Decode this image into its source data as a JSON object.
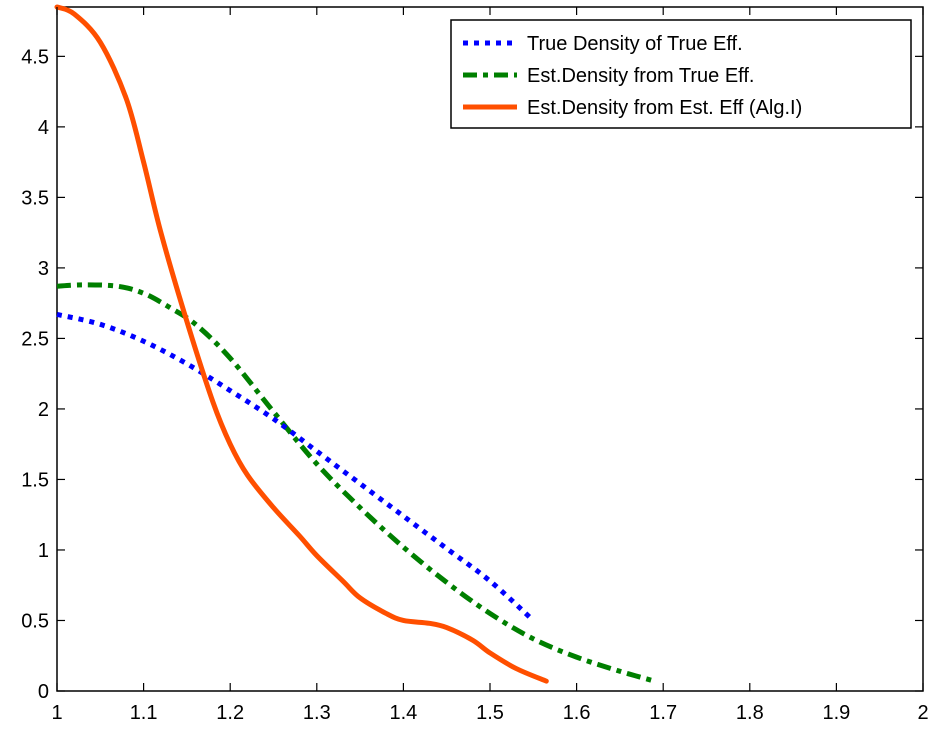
{
  "chart_data": {
    "type": "line",
    "title": "",
    "xlabel": "",
    "ylabel": "",
    "xlim": [
      1,
      2
    ],
    "ylim": [
      0,
      4.85
    ],
    "x_ticks": [
      1,
      1.1,
      1.2,
      1.3,
      1.4,
      1.5,
      1.6,
      1.7,
      1.8,
      1.9,
      2
    ],
    "x_tick_labels": [
      "1",
      "1.1",
      "1.2",
      "1.3",
      "1.4",
      "1.5",
      "1.6",
      "1.7",
      "1.8",
      "1.9",
      "2"
    ],
    "y_ticks": [
      0,
      0.5,
      1,
      1.5,
      2,
      2.5,
      3,
      3.5,
      4,
      4.5
    ],
    "y_tick_labels": [
      "0",
      "0.5",
      "1",
      "1.5",
      "2",
      "2.5",
      "3",
      "3.5",
      "4",
      "4.5"
    ],
    "grid": false,
    "legend_position": "top-right",
    "series": [
      {
        "name": "True Density of True Eff.",
        "color": "#0000ff",
        "style": "dotted",
        "x": [
          1.0,
          1.05,
          1.1,
          1.15,
          1.2,
          1.25,
          1.3,
          1.35,
          1.4,
          1.45,
          1.5,
          1.55
        ],
        "y": [
          2.67,
          2.6,
          2.48,
          2.32,
          2.13,
          1.93,
          1.7,
          1.47,
          1.24,
          1.01,
          0.78,
          0.5
        ]
      },
      {
        "name": "Est.Density from True Eff.",
        "color": "#007f00",
        "style": "dashdot",
        "x": [
          1.0,
          1.03,
          1.07,
          1.1,
          1.13,
          1.16,
          1.2,
          1.25,
          1.3,
          1.35,
          1.4,
          1.45,
          1.5,
          1.55,
          1.6,
          1.65,
          1.69
        ],
        "y": [
          2.87,
          2.88,
          2.87,
          2.82,
          2.72,
          2.6,
          2.36,
          1.98,
          1.61,
          1.3,
          1.02,
          0.77,
          0.55,
          0.37,
          0.24,
          0.14,
          0.07
        ]
      },
      {
        "name": "Est.Density from Est. Eff (Alg.I)",
        "color": "#ff4f00",
        "style": "solid",
        "x": [
          1.0,
          1.02,
          1.05,
          1.08,
          1.1,
          1.12,
          1.15,
          1.18,
          1.2,
          1.22,
          1.25,
          1.28,
          1.3,
          1.33,
          1.35,
          1.38,
          1.4,
          1.43,
          1.45,
          1.48,
          1.5,
          1.53,
          1.565
        ],
        "y": [
          4.85,
          4.8,
          4.6,
          4.2,
          3.75,
          3.25,
          2.62,
          2.05,
          1.75,
          1.53,
          1.3,
          1.1,
          0.96,
          0.78,
          0.66,
          0.55,
          0.5,
          0.48,
          0.45,
          0.36,
          0.27,
          0.16,
          0.07
        ]
      }
    ]
  }
}
